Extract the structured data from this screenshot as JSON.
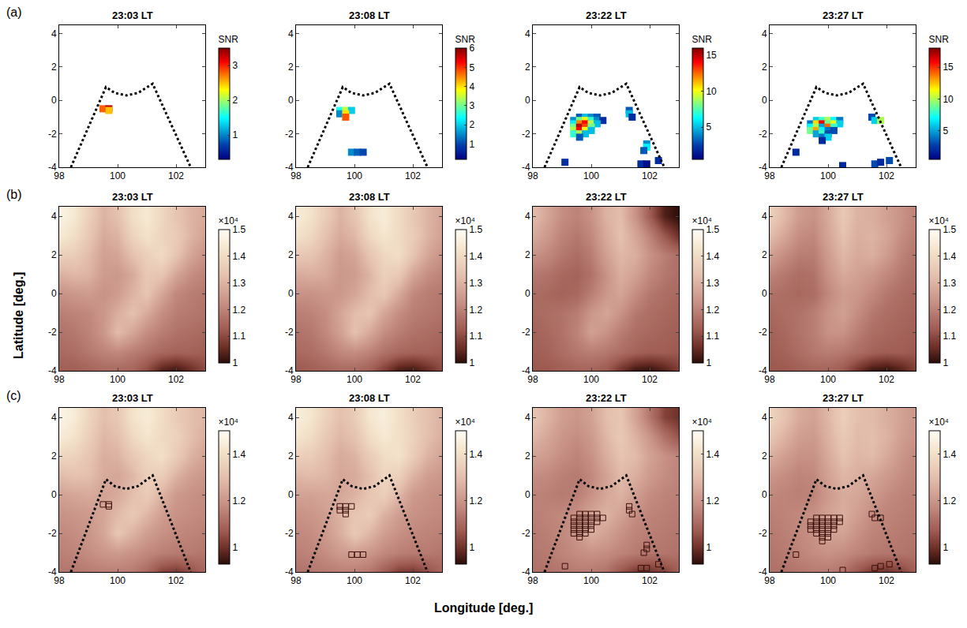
{
  "chart_data": {
    "type": "heatmap",
    "x_label": "Longitude [deg.]",
    "y_label": "Latitude [deg.]",
    "xlim": [
      98,
      103
    ],
    "ylim": [
      -4,
      4.5
    ],
    "xticks": [
      98,
      100,
      102
    ],
    "yticks": [
      -4,
      -2,
      0,
      2,
      4
    ],
    "grid": false,
    "fov": {
      "x": [
        98.4,
        99.6,
        99.9,
        100.3,
        100.7,
        101.2,
        102.5
      ],
      "y": [
        -4,
        0.8,
        0.45,
        0.3,
        0.45,
        1.0,
        -4
      ],
      "line_style": "dotted",
      "color": "#000000"
    },
    "rows": [
      {
        "label": "(a)",
        "colorbar_title": "SNR",
        "marker": "square"
      },
      {
        "label": "(b)",
        "colorbar_title": "×10⁴",
        "zlim": [
          10000,
          15000
        ],
        "zticks": [
          {
            "value": 10000,
            "label": "1"
          },
          {
            "value": 11000,
            "label": "1.1"
          },
          {
            "value": 12000,
            "label": "1.2"
          },
          {
            "value": 13000,
            "label": "1.3"
          },
          {
            "value": 14000,
            "label": "1.4"
          },
          {
            "value": 15000,
            "label": "1.5"
          }
        ]
      },
      {
        "label": "(c)",
        "colorbar_title": "×10⁴",
        "zlim": [
          9300,
          15000
        ],
        "zticks": [
          {
            "value": 10000,
            "label": "1"
          },
          {
            "value": 12000,
            "label": "1.2"
          },
          {
            "value": 14000,
            "label": "1.4"
          }
        ],
        "marker": "square-open",
        "color": "#3a0f0a"
      }
    ],
    "airglow_x": [
      98,
      98.5,
      99,
      99.5,
      100,
      100.5,
      101,
      101.5,
      102,
      102.5,
      103
    ],
    "airglow_y": [
      -4,
      -3,
      -2,
      -1,
      0,
      1,
      2,
      3,
      4
    ],
    "columns": [
      {
        "title": "23:03 LT",
        "airglow": [
          [
            11300,
            11300,
            11400,
            11500,
            11500,
            11400,
            11000,
            10300,
            10100,
            10500,
            11000
          ],
          [
            11500,
            11600,
            11800,
            12000,
            12100,
            11900,
            11700,
            11500,
            11400,
            11400,
            11300
          ],
          [
            11700,
            11800,
            12000,
            12400,
            13200,
            12700,
            12200,
            11900,
            11700,
            11600,
            11500
          ],
          [
            11900,
            12000,
            12100,
            12400,
            12900,
            13300,
            12800,
            12200,
            11900,
            11800,
            11700
          ],
          [
            12300,
            12400,
            12500,
            12300,
            12500,
            13000,
            13400,
            12700,
            12100,
            11900,
            11800
          ],
          [
            12900,
            13100,
            13000,
            12500,
            12400,
            12800,
            13500,
            13400,
            12700,
            12200,
            12000
          ],
          [
            13700,
            13600,
            13200,
            12600,
            12700,
            13300,
            13700,
            14000,
            13400,
            12700,
            12300
          ],
          [
            14400,
            14100,
            13500,
            12800,
            13000,
            13800,
            14200,
            13800,
            13600,
            13000,
            12600
          ],
          [
            14700,
            14400,
            13700,
            13000,
            13300,
            14100,
            14400,
            13900,
            13400,
            13000,
            12800
          ]
        ],
        "snr": {
          "x": [
            99.5,
            99.7,
            99.7
          ],
          "y": [
            -0.5,
            -0.5,
            -0.6
          ],
          "values": [
            2.8,
            3.3,
            2.5
          ],
          "zlim": [
            0.3,
            3.5
          ],
          "zticks": [
            1,
            2,
            3
          ]
        }
      },
      {
        "title": "23:08 LT",
        "airglow": [
          [
            11200,
            11300,
            11400,
            11500,
            11500,
            11300,
            10800,
            10200,
            10100,
            10500,
            11000
          ],
          [
            11500,
            11600,
            11800,
            12100,
            12200,
            12000,
            11700,
            11500,
            11400,
            11400,
            11300
          ],
          [
            11700,
            11800,
            12100,
            12600,
            13300,
            12800,
            12200,
            11900,
            11700,
            11600,
            11500
          ],
          [
            11900,
            12000,
            12200,
            12700,
            13200,
            13400,
            12700,
            12200,
            11900,
            11800,
            11700
          ],
          [
            12300,
            12300,
            12400,
            12400,
            12700,
            13200,
            13500,
            12800,
            12100,
            11900,
            11800
          ],
          [
            12800,
            12900,
            12800,
            12400,
            12500,
            13000,
            13700,
            13500,
            12700,
            12200,
            12000
          ],
          [
            13500,
            13400,
            13000,
            12500,
            12700,
            13400,
            13900,
            14100,
            13400,
            12700,
            12300
          ],
          [
            14200,
            13900,
            13300,
            12800,
            13100,
            13900,
            14300,
            14000,
            13600,
            13000,
            12600
          ],
          [
            14500,
            14200,
            13600,
            13000,
            13400,
            14200,
            14500,
            14000,
            13500,
            13000,
            12700
          ]
        ],
        "snr": {
          "x": [
            99.5,
            99.7,
            99.9,
            99.5,
            99.7,
            99.7,
            99.9,
            100.1,
            100.3
          ],
          "y": [
            -0.6,
            -0.6,
            -0.6,
            -0.8,
            -0.8,
            -1.0,
            -3.1,
            -3.1,
            -3.1
          ],
          "values": [
            2.5,
            3.5,
            2.0,
            1.5,
            4.0,
            4.8,
            1.5,
            1.2,
            1.0
          ],
          "zlim": [
            0.2,
            6
          ],
          "zticks": [
            1,
            2,
            3,
            4,
            5,
            6
          ]
        }
      },
      {
        "title": "23:22 LT",
        "airglow": [
          [
            11200,
            11200,
            11300,
            11400,
            11400,
            11200,
            10600,
            10100,
            10000,
            10300,
            10800
          ],
          [
            11300,
            11400,
            11600,
            11800,
            11900,
            11800,
            11600,
            11400,
            11300,
            11300,
            11200
          ],
          [
            11400,
            11500,
            11700,
            12000,
            12600,
            12300,
            11900,
            11600,
            11500,
            11400,
            11300
          ],
          [
            11500,
            11600,
            11700,
            11900,
            12400,
            12700,
            12300,
            11800,
            11600,
            11500,
            11400
          ],
          [
            11600,
            11500,
            11400,
            11500,
            11900,
            12400,
            12700,
            12200,
            11800,
            11600,
            11500
          ],
          [
            11800,
            11700,
            11500,
            11400,
            11700,
            12300,
            12900,
            12600,
            12100,
            11800,
            11600
          ],
          [
            12300,
            12100,
            11800,
            11600,
            11900,
            12600,
            13100,
            12900,
            12300,
            11900,
            11600
          ],
          [
            12800,
            12400,
            12000,
            11800,
            12100,
            12800,
            13300,
            12700,
            12000,
            11200,
            10600
          ],
          [
            13200,
            12700,
            12200,
            12000,
            12300,
            13000,
            13200,
            12300,
            11300,
            10300,
            10000
          ]
        ],
        "snr": {
          "x": [
            99.6,
            99.8,
            100.0,
            100.2,
            99.4,
            99.6,
            99.8,
            100.0,
            100.2,
            100.4,
            99.4,
            99.6,
            99.8,
            100.0,
            100.2,
            99.4,
            99.6,
            99.8,
            100.0,
            99.4,
            99.6,
            99.8,
            100.0,
            99.4,
            99.6,
            99.8,
            99.6,
            101.3,
            101.3,
            101.4,
            101.9,
            101.9,
            101.8,
            99.1,
            101.7,
            101.9,
            102.3
          ],
          "y": [
            -1.0,
            -1.0,
            -1.0,
            -1.0,
            -1.2,
            -1.2,
            -1.2,
            -1.2,
            -1.2,
            -1.2,
            -1.4,
            -1.4,
            -1.4,
            -1.4,
            -1.4,
            -1.6,
            -1.6,
            -1.6,
            -1.6,
            -1.8,
            -1.8,
            -1.8,
            -1.8,
            -2.0,
            -2.0,
            -2.0,
            -2.2,
            -0.6,
            -0.8,
            -1.0,
            -2.6,
            -2.8,
            -3.0,
            -3.7,
            -3.8,
            -3.8,
            -3.6
          ],
          "values": [
            3,
            5,
            4,
            3,
            4,
            8,
            10,
            7,
            4,
            2,
            6,
            12,
            14,
            9,
            5,
            8,
            15,
            13,
            8,
            9,
            14,
            10,
            5,
            7,
            9,
            5,
            3,
            3,
            5,
            2,
            4,
            6,
            3,
            2,
            2,
            1,
            2
          ],
          "zlim": [
            0.5,
            16
          ],
          "zticks": [
            5,
            10,
            15
          ]
        }
      },
      {
        "title": "23:27 LT",
        "airglow": [
          [
            11200,
            11200,
            11300,
            11400,
            11400,
            11200,
            10600,
            10100,
            10000,
            10300,
            10800
          ],
          [
            11300,
            11400,
            11600,
            11800,
            11900,
            11800,
            11600,
            11400,
            11300,
            11300,
            11200
          ],
          [
            11400,
            11500,
            11700,
            11900,
            12300,
            12300,
            11900,
            11600,
            11500,
            11400,
            11300
          ],
          [
            11500,
            11600,
            11700,
            11900,
            12300,
            12600,
            12200,
            11800,
            11600,
            11500,
            11400
          ],
          [
            11700,
            11600,
            11500,
            11600,
            12100,
            12500,
            12400,
            12100,
            11800,
            11600,
            11500
          ],
          [
            12000,
            11800,
            11600,
            11700,
            12300,
            12800,
            12600,
            12400,
            12100,
            11800,
            11600
          ],
          [
            12600,
            12200,
            11900,
            11900,
            12500,
            13100,
            12800,
            12900,
            12500,
            12000,
            11700
          ],
          [
            13200,
            12700,
            12200,
            12100,
            12700,
            13300,
            12900,
            13000,
            12700,
            12200,
            11900
          ],
          [
            13700,
            13100,
            12500,
            12300,
            12800,
            13500,
            13000,
            12900,
            12600,
            12300,
            12000
          ]
        ],
        "snr": {
          "x": [
            99.6,
            99.8,
            100.0,
            100.2,
            100.4,
            99.4,
            99.6,
            99.8,
            100.0,
            100.2,
            100.4,
            99.4,
            99.6,
            99.8,
            100.0,
            100.2,
            99.4,
            99.6,
            99.8,
            100.0,
            100.2,
            99.6,
            99.8,
            100.0,
            99.8,
            100.0,
            99.8,
            101.5,
            101.6,
            101.8,
            98.9,
            100.5,
            101.6,
            101.8,
            102.1
          ],
          "y": [
            -1.2,
            -1.2,
            -1.2,
            -1.2,
            -1.2,
            -1.4,
            -1.4,
            -1.4,
            -1.4,
            -1.4,
            -1.4,
            -1.6,
            -1.6,
            -1.6,
            -1.6,
            -1.6,
            -1.8,
            -1.8,
            -1.8,
            -1.8,
            -1.8,
            -2.0,
            -2.0,
            -2.0,
            -2.2,
            -2.2,
            -2.4,
            -1.0,
            -1.2,
            -1.2,
            -3.1,
            -3.9,
            -3.8,
            -3.7,
            -3.6
          ],
          "values": [
            6,
            8,
            10,
            7,
            4,
            4,
            12,
            16,
            9,
            11,
            6,
            7,
            10,
            5,
            14,
            8,
            9,
            13,
            7,
            4,
            3,
            5,
            8,
            3,
            4,
            6,
            2,
            3,
            6,
            10,
            2,
            2,
            3,
            2,
            3
          ],
          "zlim": [
            0.5,
            18
          ],
          "zticks": [
            5,
            10,
            15
          ]
        }
      }
    ]
  }
}
